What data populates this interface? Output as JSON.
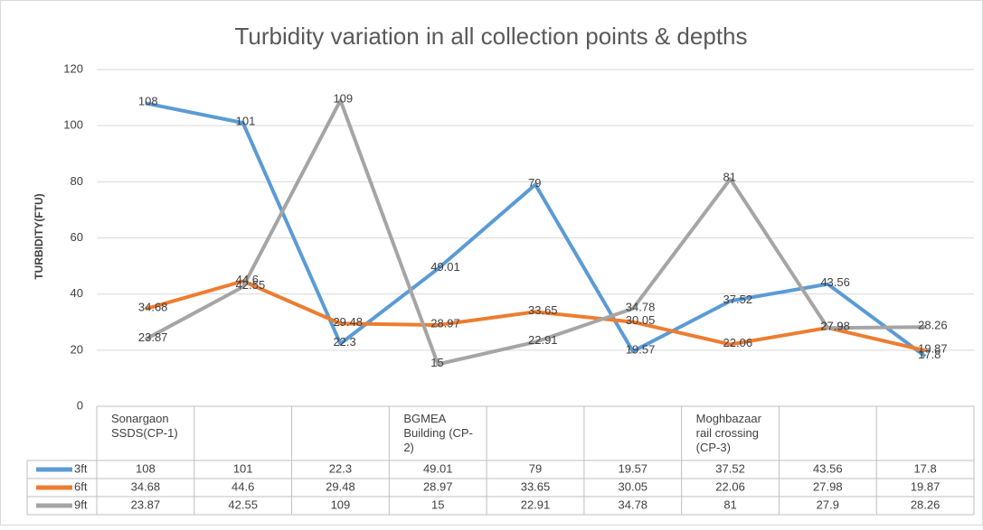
{
  "chart_data": {
    "type": "line",
    "title": "Turbidity variation in all collection points & depths",
    "y_label": "TURBIDITY(FTU)",
    "categories": [
      "Sonargaon SSDS(CP-1)",
      null,
      null,
      "BGMEA Building (CP-2)",
      null,
      null,
      "Moghbazaar rail crossing (CP-3)",
      null,
      null
    ],
    "series": [
      {
        "name": "3ft",
        "color": "#5b9bd5",
        "values": [
          108,
          101,
          22.3,
          49.01,
          79,
          19.57,
          37.52,
          43.56,
          17.8
        ]
      },
      {
        "name": "6ft",
        "color": "#ed7d31",
        "values": [
          34.68,
          44.6,
          29.48,
          28.97,
          33.65,
          30.05,
          22.06,
          27.98,
          19.87
        ]
      },
      {
        "name": "9ft",
        "color": "#a5a5a5",
        "values": [
          23.87,
          42.55,
          109,
          15,
          22.91,
          34.78,
          81,
          27.9,
          28.26
        ]
      }
    ],
    "ylim": [
      0,
      120
    ],
    "yticks": [
      0,
      20,
      40,
      60,
      80,
      100,
      120
    ],
    "grid": true
  }
}
